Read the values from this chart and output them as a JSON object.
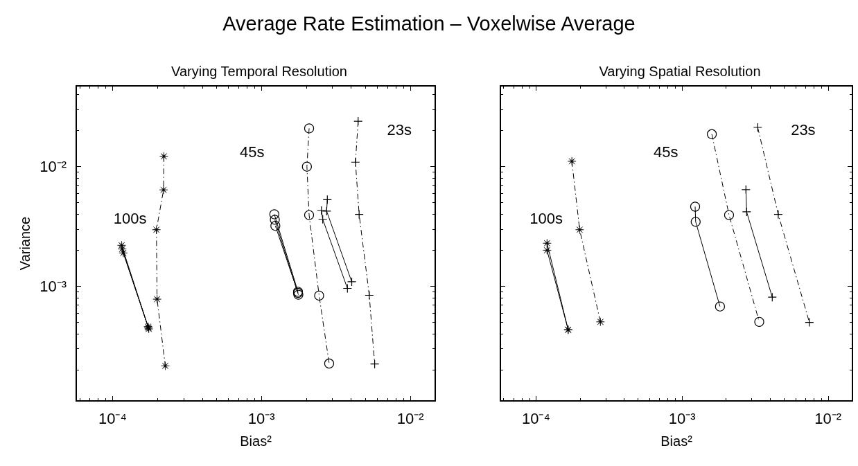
{
  "chart_data": [
    {
      "type": "line",
      "title": "Varying Temporal Resolution",
      "xlabel": "Bias²",
      "ylabel": "Variance",
      "log": "xy",
      "grid": false,
      "xlim": [
        5.7e-05,
        0.0147
      ],
      "ylim": [
        0.00011,
        0.0474
      ],
      "xticks": [
        {
          "value": 0.0001,
          "label": "10⁻⁴"
        },
        {
          "value": 0.001,
          "label": "10⁻³"
        },
        {
          "value": 0.01,
          "label": "10⁻²"
        }
      ],
      "yticks": [
        {
          "value": 0.001,
          "label": "10⁻³"
        },
        {
          "value": 0.01,
          "label": "10⁻²"
        }
      ],
      "annotations": [
        "Average Rate Estimation – Voxelwise Average",
        "100s",
        "45s",
        "23s"
      ],
      "series": [
        {
          "color": "#000000",
          "marker": "star",
          "line_style": "solid",
          "x": [
            0.000115,
            0.000173
          ],
          "values": [
            0.0022,
            0.00046
          ]
        },
        {
          "color": "#000000",
          "marker": "star",
          "line_style": "solid",
          "x": [
            0.000116,
            0.000175
          ],
          "values": [
            0.00205,
            0.00044
          ]
        },
        {
          "color": "#000000",
          "marker": "star",
          "line_style": "solid",
          "x": [
            0.000118,
            0.000174
          ],
          "values": [
            0.0019,
            0.00045
          ]
        },
        {
          "color": "#000000",
          "marker": "star",
          "line_style": "dashed",
          "x": [
            0.000221,
            0.00022,
            0.000197,
            0.000199,
            0.000226
          ],
          "values": [
            0.0122,
            0.0064,
            0.00297,
            0.00078,
            0.000216
          ]
        },
        {
          "color": "#000000",
          "marker": "circle",
          "line_style": "solid",
          "x": [
            0.00122,
            0.00176
          ],
          "values": [
            0.004,
            0.0009
          ]
        },
        {
          "color": "#000000",
          "marker": "circle",
          "line_style": "solid",
          "x": [
            0.00123,
            0.00177
          ],
          "values": [
            0.0036,
            0.00085
          ]
        },
        {
          "color": "#000000",
          "marker": "circle",
          "line_style": "solid",
          "x": [
            0.00124,
            0.00176
          ],
          "values": [
            0.0032,
            0.00088
          ]
        },
        {
          "color": "#000000",
          "marker": "circle",
          "line_style": "dashed",
          "x": [
            0.00209,
            0.00202,
            0.00209,
            0.00244,
            0.00285
          ],
          "values": [
            0.0209,
            0.01,
            0.00394,
            0.000835,
            0.000226
          ]
        },
        {
          "color": "#000000",
          "marker": "cross",
          "line_style": "solid",
          "x": [
            0.00277,
            0.00274,
            0.00404
          ],
          "values": [
            0.0053,
            0.00425,
            0.00109
          ]
        },
        {
          "color": "#000000",
          "marker": "cross",
          "line_style": "solid",
          "x": [
            0.00253,
            0.00258,
            0.00378
          ],
          "values": [
            0.0043,
            0.00363,
            0.00096
          ]
        },
        {
          "color": "#000000",
          "marker": "cross",
          "line_style": "dashed",
          "x": [
            0.00446,
            0.00428,
            0.00453,
            0.0053,
            0.00576
          ],
          "values": [
            0.024,
            0.0109,
            0.00399,
            0.00084,
            0.000224
          ]
        }
      ]
    },
    {
      "type": "line",
      "title": "Varying Spatial Resolution",
      "xlabel": "Bias²",
      "log": "xy",
      "grid": false,
      "tick_labels": "x",
      "xlim": [
        5.7e-05,
        0.0147
      ],
      "ylim": [
        0.00011,
        0.0474
      ],
      "xticks": [
        {
          "value": 0.0001,
          "label": "10⁻⁴"
        },
        {
          "value": 0.001,
          "label": "10⁻³"
        },
        {
          "value": 0.01,
          "label": "10⁻²"
        }
      ],
      "annotations": [
        "100s",
        "45s",
        "23s"
      ],
      "series": [
        {
          "color": "#000000",
          "marker": "star",
          "line_style": "solid",
          "x": [
            0.000119,
            0.000166
          ],
          "values": [
            0.00229,
            0.000433
          ]
        },
        {
          "color": "#000000",
          "marker": "star",
          "line_style": "solid",
          "x": [
            0.000119,
            0.000166
          ],
          "values": [
            0.002,
            0.000433
          ]
        },
        {
          "color": "#000000",
          "marker": "star",
          "line_style": "dashed",
          "x": [
            0.000176,
            0.000199,
            0.000276
          ],
          "values": [
            0.0111,
            0.00297,
            0.000504
          ]
        },
        {
          "color": "#000000",
          "marker": "circle",
          "line_style": "solid",
          "x": [
            0.00123,
            0.00124,
            0.00182
          ],
          "values": [
            0.00463,
            0.00346,
            0.000677
          ]
        },
        {
          "color": "#000000",
          "marker": "circle",
          "line_style": "dashed",
          "x": [
            0.0016,
            0.0021,
            0.00338
          ],
          "values": [
            0.0187,
            0.00394,
            0.000504
          ]
        },
        {
          "color": "#000000",
          "marker": "cross",
          "line_style": "solid",
          "x": [
            0.00274,
            0.00277,
            0.00415
          ],
          "values": [
            0.00643,
            0.00419,
            0.000811
          ]
        },
        {
          "color": "#000000",
          "marker": "cross",
          "line_style": "dashed",
          "x": [
            0.0033,
            0.00456,
            0.00745
          ],
          "values": [
            0.0213,
            0.00399,
            0.000499
          ]
        }
      ]
    }
  ]
}
